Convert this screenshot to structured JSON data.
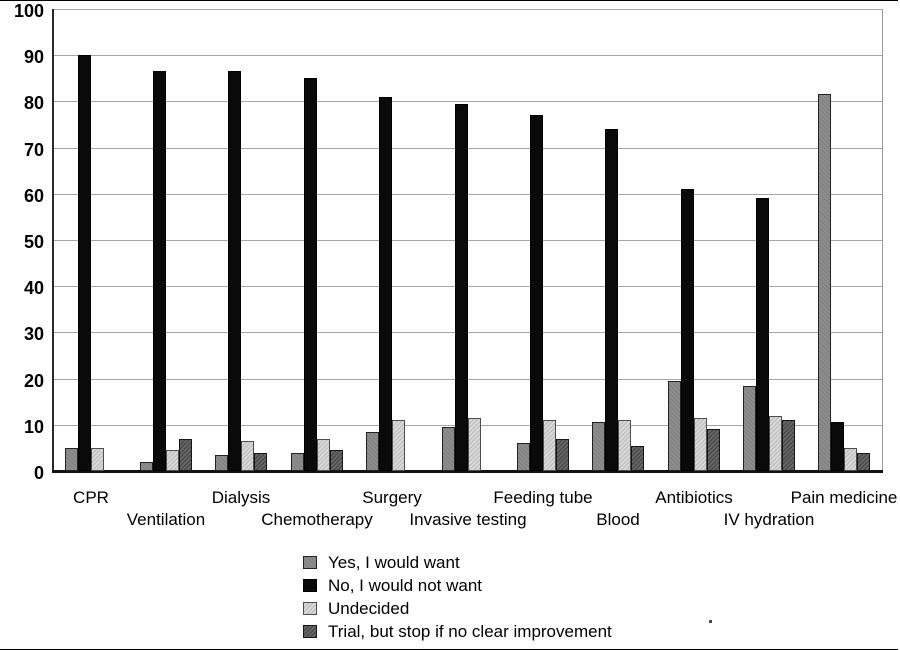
{
  "chart_data": {
    "type": "bar",
    "title": "",
    "xlabel": "",
    "ylabel": "",
    "categories": [
      "CPR",
      "Ventilation",
      "Dialysis",
      "Chemotherapy",
      "Surgery",
      "Invasive testing",
      "Feeding tube",
      "Blood",
      "Antibiotics",
      "IV hydration",
      "Pain medicine"
    ],
    "series": [
      {
        "name": "Yes, I would want",
        "style": "yes",
        "color": "#8d8d8d",
        "values": [
          5,
          2,
          3.5,
          4,
          8.5,
          9.5,
          6,
          10.5,
          19.5,
          18.5,
          81.5
        ]
      },
      {
        "name": "No, I would not want",
        "style": "no",
        "color": "#0a0a0a",
        "values": [
          90,
          86.5,
          86.5,
          85,
          81,
          79.5,
          77,
          74,
          61,
          59,
          10.5
        ]
      },
      {
        "name": "Undecided",
        "style": "undecided",
        "color": "#d9d9d9",
        "values": [
          5,
          4.5,
          6.5,
          7,
          11,
          11.5,
          11,
          11,
          11.5,
          12,
          5
        ]
      },
      {
        "name": "Trial, but stop if no clear improvement",
        "style": "trial",
        "color": "#676767",
        "values": [
          0,
          7,
          4,
          4.5,
          0,
          0,
          7,
          5.5,
          9,
          11,
          4
        ]
      }
    ],
    "ylim": [
      0,
      100
    ],
    "yticks": [
      0,
      10,
      20,
      30,
      40,
      50,
      60,
      70,
      80,
      90,
      100
    ],
    "grid": true,
    "gridline_color": "#a6a6a6",
    "legend_position": "bottom-center",
    "xlabel_rows": "staggered"
  }
}
